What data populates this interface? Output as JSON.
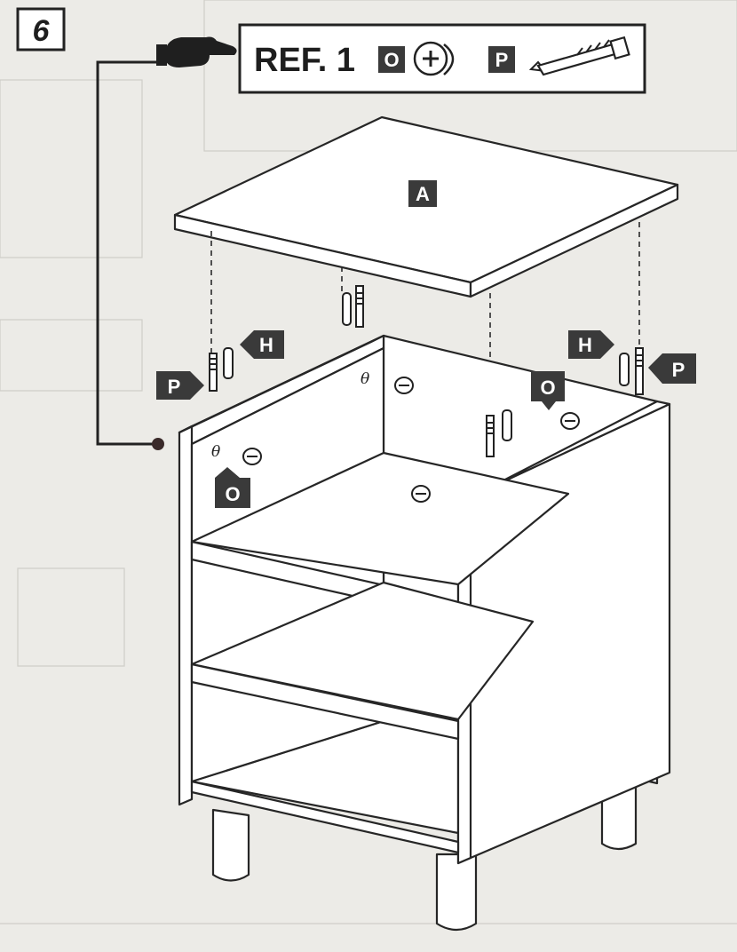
{
  "step": {
    "number": "6"
  },
  "reference": {
    "label": "REF. 1",
    "parts": [
      "O",
      "P"
    ]
  },
  "panel_label": "A",
  "part_labels": {
    "H": "H",
    "P": "P",
    "O": "O"
  },
  "icons": {
    "pointer": "pointing-hand-icon",
    "cam": "cam-lock-icon",
    "bolt": "cam-bolt-icon"
  },
  "colors": {
    "label_fill": "#3a3a3a",
    "line": "#262626",
    "paper": "#ecebe7"
  }
}
